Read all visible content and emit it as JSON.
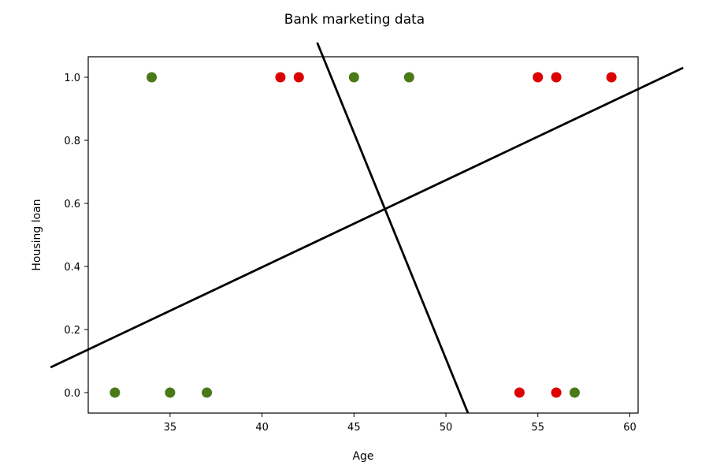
{
  "chart_data": {
    "type": "scatter",
    "title": "Bank marketing data",
    "xlabel": "Age",
    "ylabel": "Housing loan",
    "xlim": [
      30.55,
      60.45
    ],
    "ylim": [
      -0.065,
      1.065
    ],
    "xticks": [
      35,
      40,
      45,
      50,
      55,
      60
    ],
    "yticks": [
      0.0,
      0.2,
      0.4,
      0.6,
      0.8,
      1.0
    ],
    "ytick_labels": [
      "0.0",
      "0.2",
      "0.4",
      "0.6",
      "0.8",
      "1.0"
    ],
    "grid": false,
    "colors": {
      "green": "#4a7a18",
      "red": "#dd0000",
      "line": "#000000"
    },
    "points": [
      {
        "x": 32,
        "y": 0,
        "color": "green"
      },
      {
        "x": 35,
        "y": 0,
        "color": "green"
      },
      {
        "x": 37,
        "y": 0,
        "color": "green"
      },
      {
        "x": 34,
        "y": 1,
        "color": "green"
      },
      {
        "x": 41,
        "y": 1,
        "color": "red"
      },
      {
        "x": 42,
        "y": 1,
        "color": "red"
      },
      {
        "x": 45,
        "y": 1,
        "color": "green"
      },
      {
        "x": 48,
        "y": 1,
        "color": "green"
      },
      {
        "x": 54,
        "y": 0,
        "color": "red"
      },
      {
        "x": 56,
        "y": 0,
        "color": "red"
      },
      {
        "x": 57,
        "y": 0,
        "color": "green"
      },
      {
        "x": 55,
        "y": 1,
        "color": "red"
      },
      {
        "x": 56,
        "y": 1,
        "color": "red"
      },
      {
        "x": 59,
        "y": 1,
        "color": "red"
      }
    ],
    "lines": [
      {
        "x1": 28.5,
        "y1": 0.08,
        "x2": 62.9,
        "y2": 1.03
      },
      {
        "x1": 43.0,
        "y1": 1.11,
        "x2": 51.2,
        "y2": -0.065
      }
    ]
  }
}
